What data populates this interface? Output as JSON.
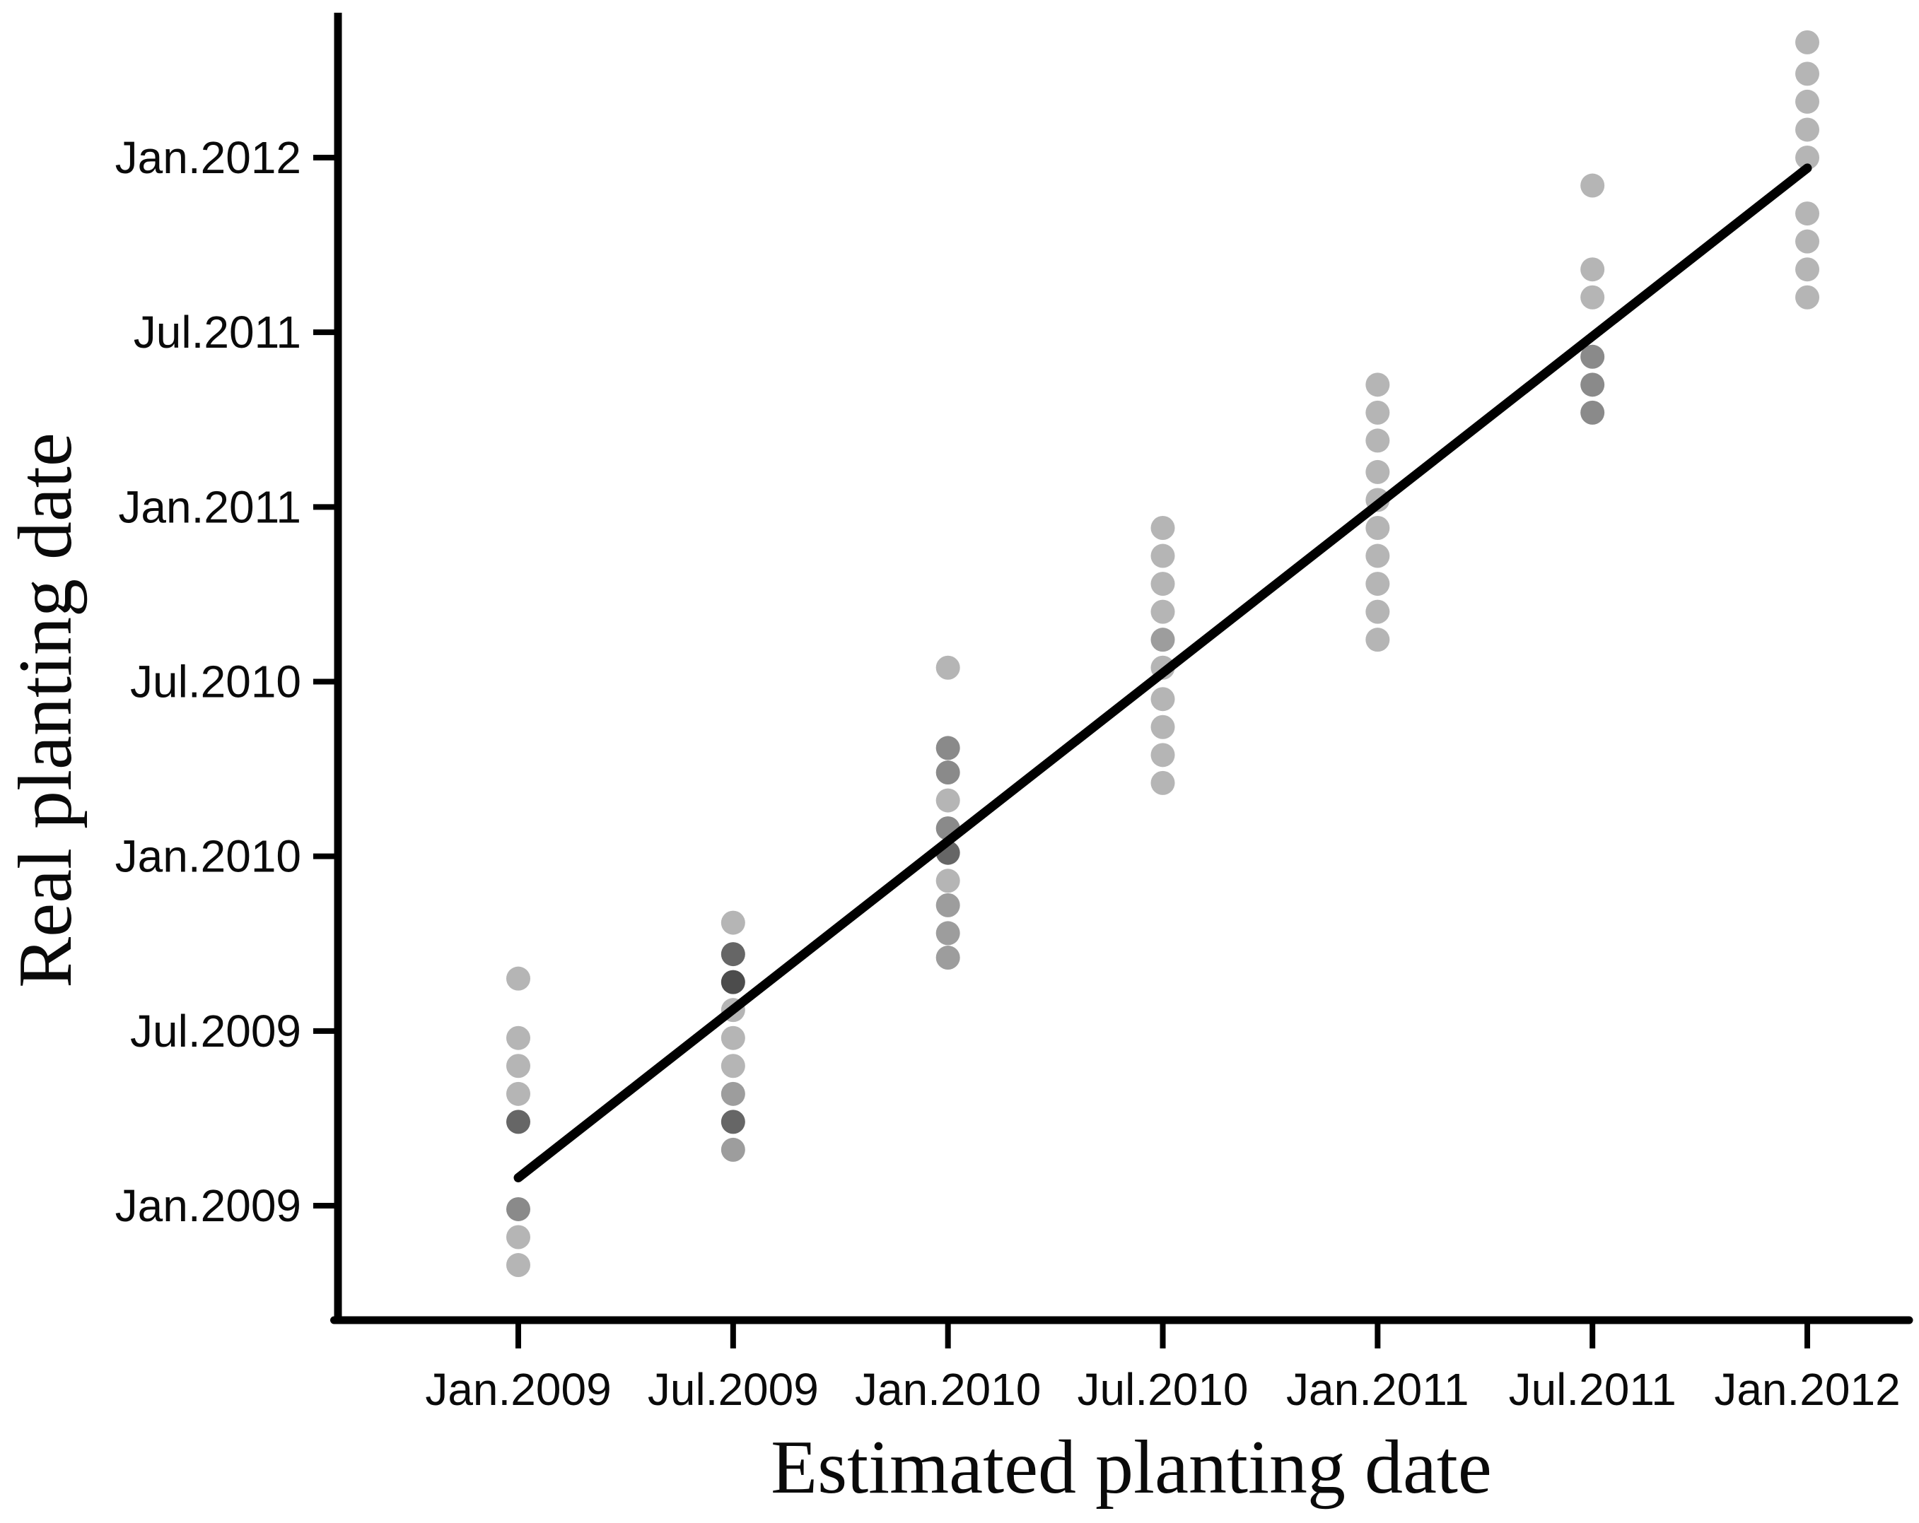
{
  "figure": {
    "background": "#ffffff",
    "axis_color": "#000000",
    "fit_line_color": "#000000"
  },
  "chart_data": {
    "type": "scatter",
    "title": "",
    "xlabel": "Estimated planting date",
    "ylabel": "Real planting date",
    "grid": false,
    "legend": null,
    "xlim": [
      2008.58,
      2012.24
    ],
    "ylim": [
      2008.67,
      2012.41
    ],
    "x_ticks": [
      {
        "value": 2009.0,
        "label": "Jan.2009"
      },
      {
        "value": 2009.5,
        "label": "Jul.2009"
      },
      {
        "value": 2010.0,
        "label": "Jan.2010"
      },
      {
        "value": 2010.5,
        "label": "Jul.2010"
      },
      {
        "value": 2011.0,
        "label": "Jan.2011"
      },
      {
        "value": 2011.5,
        "label": "Jul.2011"
      },
      {
        "value": 2012.0,
        "label": "Jan.2012"
      }
    ],
    "y_ticks": [
      {
        "value": 2012.0,
        "label": "Jan.2012"
      },
      {
        "value": 2011.5,
        "label": "Jul.2011"
      },
      {
        "value": 2011.0,
        "label": "Jan.2011"
      },
      {
        "value": 2010.5,
        "label": "Jul.2010"
      },
      {
        "value": 2010.0,
        "label": "Jan.2010"
      },
      {
        "value": 2009.5,
        "label": "Jul.2009"
      },
      {
        "value": 2009.0,
        "label": "Jan.2009"
      }
    ],
    "point_shades": {
      "light": "#b5b5b5",
      "medium": "#9d9d9d",
      "mdark": "#8a8a8a",
      "dark": "#666666",
      "darkest": "#4c4c4c"
    },
    "fit_line": {
      "x1": 2009.0,
      "y1": 2009.08,
      "x2": 2012.0,
      "y2": 2011.97
    },
    "series": [
      {
        "x": 2009.0,
        "points": [
          {
            "y": 2009.65,
            "shade": "light"
          },
          {
            "y": 2009.48,
            "shade": "light"
          },
          {
            "y": 2009.4,
            "shade": "light"
          },
          {
            "y": 2009.32,
            "shade": "light"
          },
          {
            "y": 2009.24,
            "shade": "dark"
          },
          {
            "y": 2008.99,
            "shade": "mdark"
          },
          {
            "y": 2008.91,
            "shade": "light"
          },
          {
            "y": 2008.83,
            "shade": "light"
          }
        ]
      },
      {
        "x": 2009.5,
        "points": [
          {
            "y": 2009.81,
            "shade": "light"
          },
          {
            "y": 2009.72,
            "shade": "dark"
          },
          {
            "y": 2009.64,
            "shade": "darkest"
          },
          {
            "y": 2009.56,
            "shade": "light"
          },
          {
            "y": 2009.48,
            "shade": "light"
          },
          {
            "y": 2009.4,
            "shade": "light"
          },
          {
            "y": 2009.32,
            "shade": "medium"
          },
          {
            "y": 2009.24,
            "shade": "dark"
          },
          {
            "y": 2009.16,
            "shade": "medium"
          }
        ]
      },
      {
        "x": 2010.0,
        "points": [
          {
            "y": 2010.54,
            "shade": "light"
          },
          {
            "y": 2010.31,
            "shade": "mdark"
          },
          {
            "y": 2010.24,
            "shade": "mdark"
          },
          {
            "y": 2010.16,
            "shade": "light"
          },
          {
            "y": 2010.08,
            "shade": "mdark"
          },
          {
            "y": 2010.01,
            "shade": "dark"
          },
          {
            "y": 2009.93,
            "shade": "light"
          },
          {
            "y": 2009.86,
            "shade": "medium"
          },
          {
            "y": 2009.78,
            "shade": "medium"
          },
          {
            "y": 2009.71,
            "shade": "medium"
          }
        ]
      },
      {
        "x": 2010.5,
        "points": [
          {
            "y": 2010.94,
            "shade": "light"
          },
          {
            "y": 2010.86,
            "shade": "light"
          },
          {
            "y": 2010.78,
            "shade": "light"
          },
          {
            "y": 2010.7,
            "shade": "light"
          },
          {
            "y": 2010.62,
            "shade": "medium"
          },
          {
            "y": 2010.54,
            "shade": "light"
          },
          {
            "y": 2010.45,
            "shade": "light"
          },
          {
            "y": 2010.37,
            "shade": "light"
          },
          {
            "y": 2010.29,
            "shade": "light"
          },
          {
            "y": 2010.21,
            "shade": "light"
          }
        ]
      },
      {
        "x": 2011.0,
        "points": [
          {
            "y": 2011.35,
            "shade": "light"
          },
          {
            "y": 2011.27,
            "shade": "light"
          },
          {
            "y": 2011.19,
            "shade": "light"
          },
          {
            "y": 2011.1,
            "shade": "light"
          },
          {
            "y": 2011.02,
            "shade": "light"
          },
          {
            "y": 2010.94,
            "shade": "light"
          },
          {
            "y": 2010.86,
            "shade": "light"
          },
          {
            "y": 2010.78,
            "shade": "light"
          },
          {
            "y": 2010.7,
            "shade": "light"
          },
          {
            "y": 2010.62,
            "shade": "light"
          }
        ]
      },
      {
        "x": 2011.5,
        "points": [
          {
            "y": 2011.92,
            "shade": "light"
          },
          {
            "y": 2011.68,
            "shade": "light"
          },
          {
            "y": 2011.6,
            "shade": "light"
          },
          {
            "y": 2011.43,
            "shade": "mdark"
          },
          {
            "y": 2011.35,
            "shade": "mdark"
          },
          {
            "y": 2011.27,
            "shade": "mdark"
          }
        ]
      },
      {
        "x": 2012.0,
        "points": [
          {
            "y": 2012.33,
            "shade": "light"
          },
          {
            "y": 2012.24,
            "shade": "light"
          },
          {
            "y": 2012.16,
            "shade": "light"
          },
          {
            "y": 2012.08,
            "shade": "light"
          },
          {
            "y": 2012.0,
            "shade": "light"
          },
          {
            "y": 2011.84,
            "shade": "light"
          },
          {
            "y": 2011.76,
            "shade": "light"
          },
          {
            "y": 2011.68,
            "shade": "light"
          },
          {
            "y": 2011.6,
            "shade": "light"
          }
        ]
      }
    ]
  }
}
